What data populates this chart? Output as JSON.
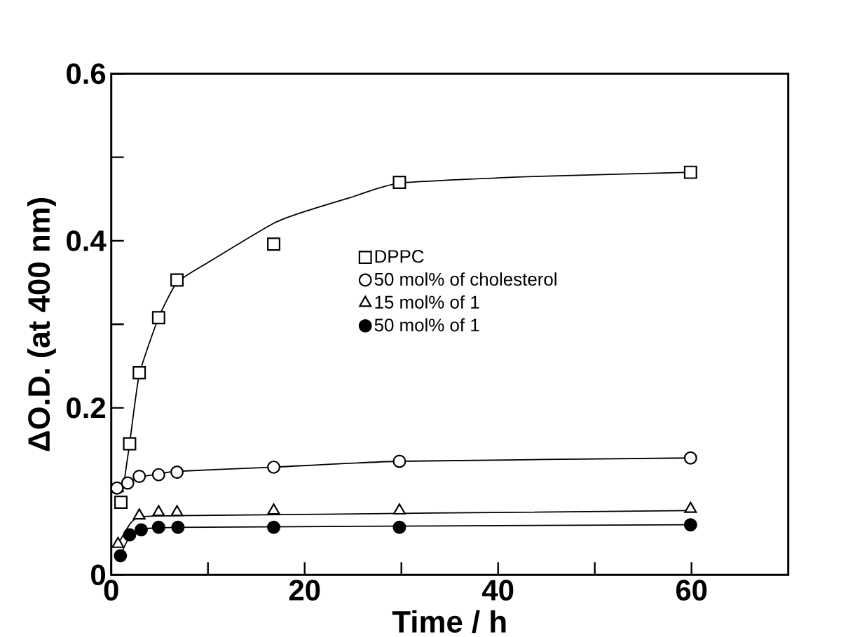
{
  "chart_data": {
    "type": "scatter",
    "xlabel": "Time / h",
    "ylabel": "ΔO.D. (at 400 nm)",
    "xlim": [
      0,
      70
    ],
    "ylim": [
      0,
      0.6
    ],
    "xticks": [
      0,
      {
        "value": 10,
        "label": null
      },
      20,
      {
        "value": 30,
        "label": null
      },
      40,
      {
        "value": 50,
        "label": null
      },
      60
    ],
    "yticks": [
      0,
      {
        "value": 0.1,
        "label": null
      },
      0.2,
      {
        "value": 0.3,
        "label": null
      },
      0.4,
      {
        "value": 0.5,
        "label": null
      },
      0.6
    ],
    "grid": false,
    "legend": "right",
    "series": [
      {
        "name": "DPPC",
        "marker": "square",
        "color": "#ffffff",
        "x": [
          1,
          1.9,
          2.9,
          4.9,
          6.8,
          16.8,
          29.8,
          59.9
        ],
        "values": [
          0.087,
          0.157,
          0.242,
          0.308,
          0.353,
          0.396,
          0.47,
          0.482
        ]
      },
      {
        "name": "50 mol% of cholesterol",
        "marker": "circle",
        "color": "#ffffff",
        "x": [
          0.6,
          1.7,
          2.9,
          4.9,
          6.8,
          16.8,
          29.8,
          59.9
        ],
        "values": [
          0.104,
          0.11,
          0.118,
          0.12,
          0.123,
          0.129,
          0.136,
          0.14
        ]
      },
      {
        "name": "15 mol% of 1",
        "marker": "triangle",
        "color": "#ffffff",
        "x": [
          0.7,
          2.9,
          4.9,
          6.8,
          16.8,
          29.8,
          59.9
        ],
        "values": [
          0.037,
          0.071,
          0.075,
          0.075,
          0.077,
          0.077,
          0.079
        ]
      },
      {
        "name": "50 mol% of 1",
        "marker": "circle",
        "color": "#000000",
        "x": [
          0.95,
          1.9,
          3.1,
          4.9,
          6.9,
          16.8,
          29.8,
          59.9
        ],
        "values": [
          0.023,
          0.048,
          0.054,
          0.057,
          0.057,
          0.057,
          0.057,
          0.06
        ]
      },
      {
        "type": "line",
        "line_style": "solid",
        "color": "#000000",
        "x": [
          1.2,
          1.9,
          2.9,
          4.9,
          6.8,
          10,
          16.8,
          20,
          24.8,
          29.8,
          43.6,
          59.9
        ],
        "values": [
          0.101,
          0.157,
          0.24,
          0.308,
          0.35,
          0.374,
          0.421,
          0.435,
          0.452,
          0.469,
          0.477,
          0.482
        ]
      },
      {
        "type": "line",
        "line_style": "solid",
        "color": "#000000",
        "x": [
          0.6,
          1.7,
          2.9,
          4.9,
          6.8,
          16.8,
          29.8,
          59.9
        ],
        "values": [
          0.104,
          0.11,
          0.117,
          0.121,
          0.124,
          0.129,
          0.136,
          0.14
        ]
      },
      {
        "type": "line",
        "line_style": "solid",
        "color": "#000000",
        "x": [
          0.7,
          2,
          3,
          7,
          59.9
        ],
        "values": [
          0.037,
          0.062,
          0.069,
          0.071,
          0.077
        ]
      },
      {
        "type": "line",
        "line_style": "solid",
        "color": "#000000",
        "x": [
          1,
          2,
          3,
          7,
          59.9
        ],
        "values": [
          0.025,
          0.048,
          0.053,
          0.057,
          0.06
        ]
      }
    ]
  }
}
